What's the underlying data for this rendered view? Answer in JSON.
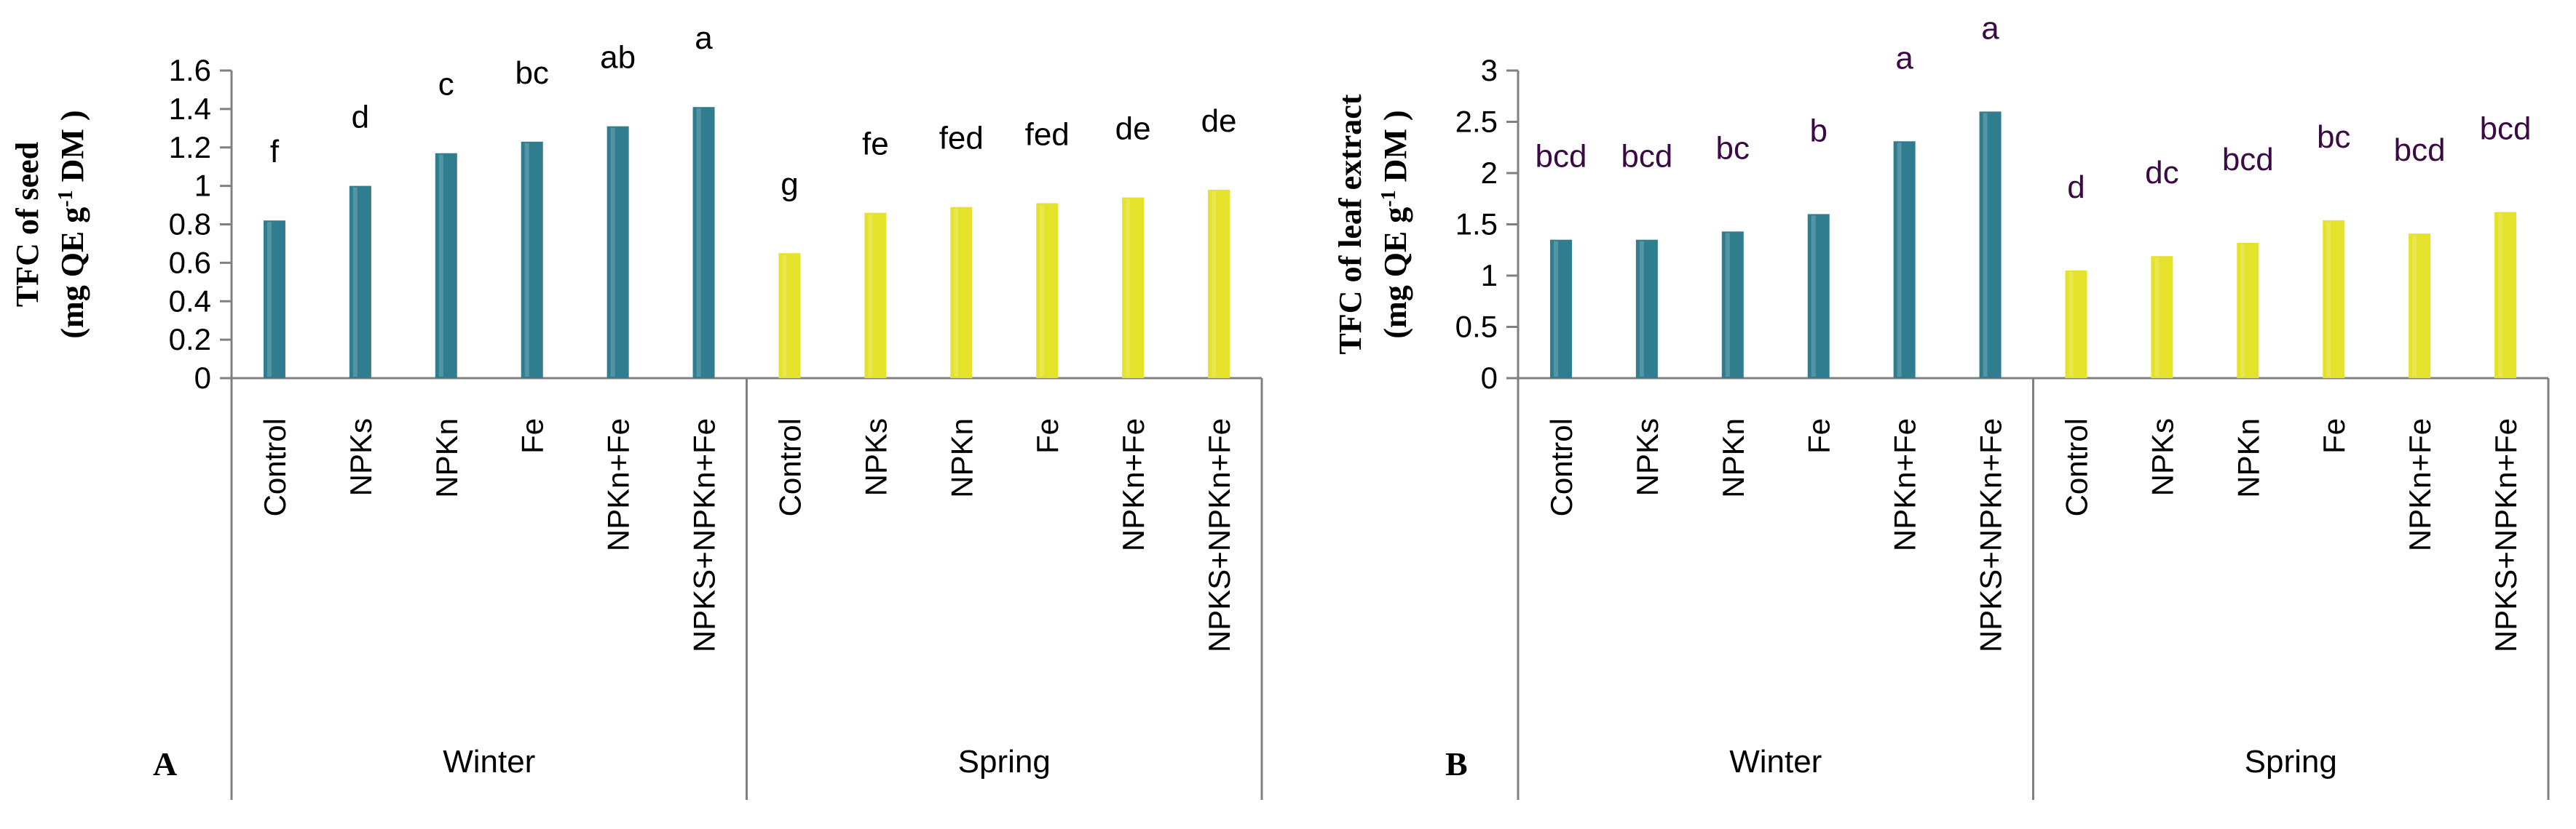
{
  "colors": {
    "winter_bar": "#2F7D8F",
    "spring_bar": "#E4E22A",
    "axis": "#808080",
    "sig_letter_A": "#000000",
    "sig_letter_B": "#3B0A45"
  },
  "chart_data": [
    {
      "type": "bar",
      "panel_label": "A",
      "ylabel_line1": "TFC of seed",
      "ylabel_line2": "(mg QE g-1 DM )",
      "ylim": [
        0,
        1.6
      ],
      "yticks": [
        "0",
        "0.2",
        "0.4",
        "0.6",
        "0.8",
        "1",
        "1.2",
        "1.4",
        "1.6"
      ],
      "groups": [
        {
          "name": "Winter",
          "categories": [
            "Control",
            "NPKs",
            "NPKn",
            "Fe",
            "NPKn+Fe",
            "NPKS+NPKn+Fe"
          ],
          "values": [
            0.82,
            1.0,
            1.17,
            1.23,
            1.31,
            1.41
          ],
          "letters": [
            "f",
            "d",
            "c",
            "bc",
            "ab",
            "a"
          ]
        },
        {
          "name": "Spring",
          "categories": [
            "Control",
            "NPKs",
            "NPKn",
            "Fe",
            "NPKn+Fe",
            "NPKS+NPKn+Fe"
          ],
          "values": [
            0.65,
            0.86,
            0.89,
            0.91,
            0.94,
            0.98
          ],
          "letters": [
            "g",
            "fe",
            "fed",
            "fed",
            "de",
            "de"
          ]
        }
      ]
    },
    {
      "type": "bar",
      "panel_label": "B",
      "ylabel_line1": "TFC of leaf extract",
      "ylabel_line2": "(mg QE g-1 DM )",
      "ylim": [
        0,
        3
      ],
      "yticks": [
        "0",
        "0.5",
        "1",
        "1.5",
        "2",
        "2.5",
        "3"
      ],
      "groups": [
        {
          "name": "Winter",
          "categories": [
            "Control",
            "NPKs",
            "NPKn",
            "Fe",
            "NPKn+Fe",
            "NPKS+NPKn+Fe"
          ],
          "values": [
            1.35,
            1.35,
            1.43,
            1.6,
            2.31,
            2.6
          ],
          "letters": [
            "bcd",
            "bcd",
            "bc",
            "b",
            "a",
            "a"
          ]
        },
        {
          "name": "Spring",
          "categories": [
            "Control",
            "NPKs",
            "NPKn",
            "Fe",
            "NPKn+Fe",
            "NPKS+NPKn+Fe"
          ],
          "values": [
            1.05,
            1.19,
            1.32,
            1.54,
            1.41,
            1.62
          ],
          "letters": [
            "d",
            "dc",
            "bcd",
            "bc",
            "bcd",
            "bcd"
          ]
        }
      ]
    }
  ]
}
